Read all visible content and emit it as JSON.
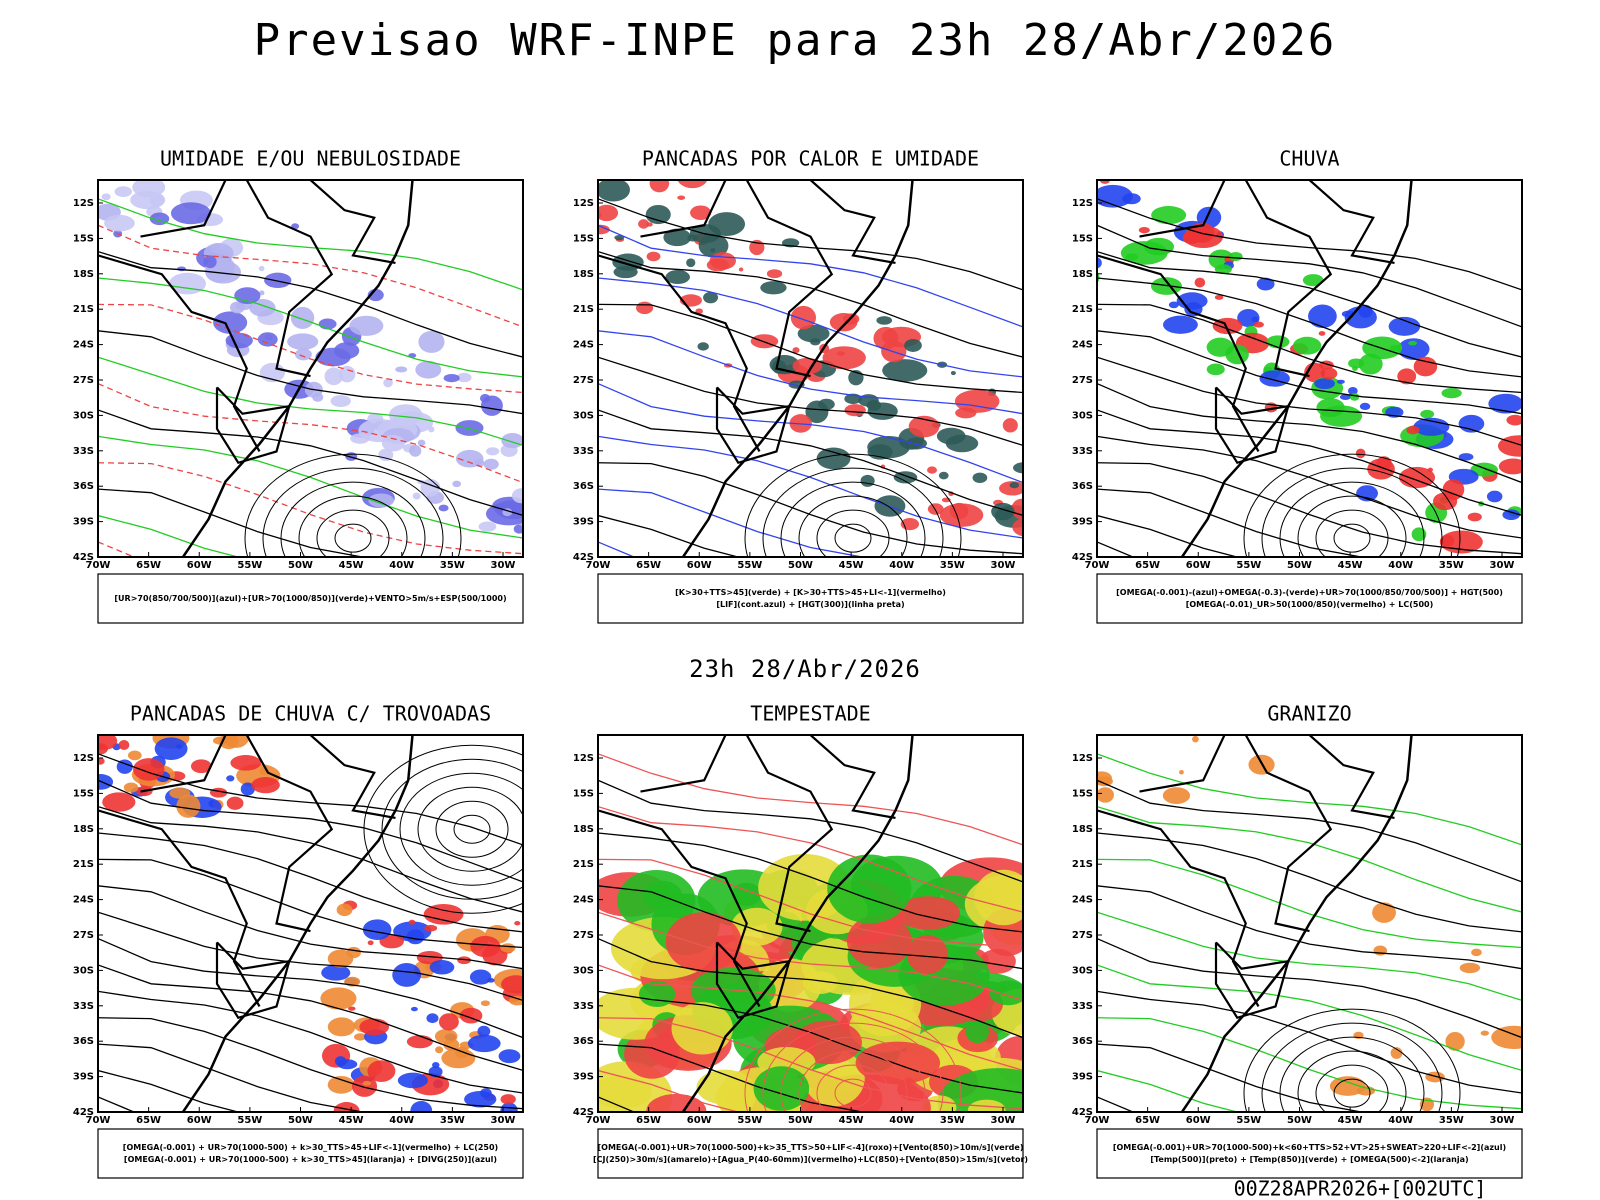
{
  "title": "Previsao WRF-INPE  para 23h 28/Abr/2026",
  "subtitle": "23h 28/Abr/2026",
  "footer": "00Z28APR2026+[002UTC]",
  "lat_labels": [
    "12S",
    "15S",
    "18S",
    "21S",
    "24S",
    "27S",
    "30S",
    "33S",
    "36S",
    "39S",
    "42S"
  ],
  "lon_labels": [
    "70W",
    "65W",
    "60W",
    "55W",
    "50W",
    "45W",
    "40W",
    "35W",
    "30W"
  ],
  "panels": [
    {
      "title": "UMIDADE E/OU NEBULOSIDADE",
      "legend": [
        "[UR>70(850/700/500)](azul)+[UR>70(1000/850)](verde)+VENTO>5m/s+ESP(500/1000)"
      ]
    },
    {
      "title": "PANCADAS POR CALOR E UMIDADE",
      "legend": [
        "[K>30+TTS>45](verde) + [K>30+TTS>45+LI<-1](vermelho)",
        "[LIF](cont.azul) + [HGT(300)](linha preta)"
      ]
    },
    {
      "title": "CHUVA",
      "legend": [
        "[OMEGA(-0.001)-(azul)+OMEGA(-0.3)-(verde)+UR>70(1000/850/700/500)] + HGT(500)",
        "[OMEGA(-0.01)_UR>50(1000/850)(vermelho) + LC(500)"
      ]
    },
    {
      "title": "PANCADAS DE CHUVA C/ TROVOADAS",
      "legend": [
        "[OMEGA(-0.001) + UR>70(1000-500) + k>30_TTS>45+LIF<-1](vermelho) + LC(250)",
        "[OMEGA(-0.001) + UR>70(1000-500) + k>30_TTS>45](laranja) + [DIVG(250)](azul)"
      ]
    },
    {
      "title": "TEMPESTADE",
      "legend": [
        "[OMEGA(-0.001)+UR>70(1000-500)+k>35_TTS>50+LIF<-4](roxo)+[Vento(850)>10m/s](verde)",
        "[CJ(250)>30m/s](amarelo)+[Agua_P(40-60mm)](vermelho)+LC(850)+[Vento(850)>15m/s](vetor)"
      ]
    },
    {
      "title": "GRANIZO",
      "legend": [
        "[OMEGA(-0.001)+UR>70(1000-500)+k<60+TTS>52+VT>25+SWEAT>220+LIF<-2](azul)",
        "[Temp(500)](preto) + [Temp(850)](verde) + [OMEGA(500)<-2](laranja)"
      ]
    }
  ]
}
